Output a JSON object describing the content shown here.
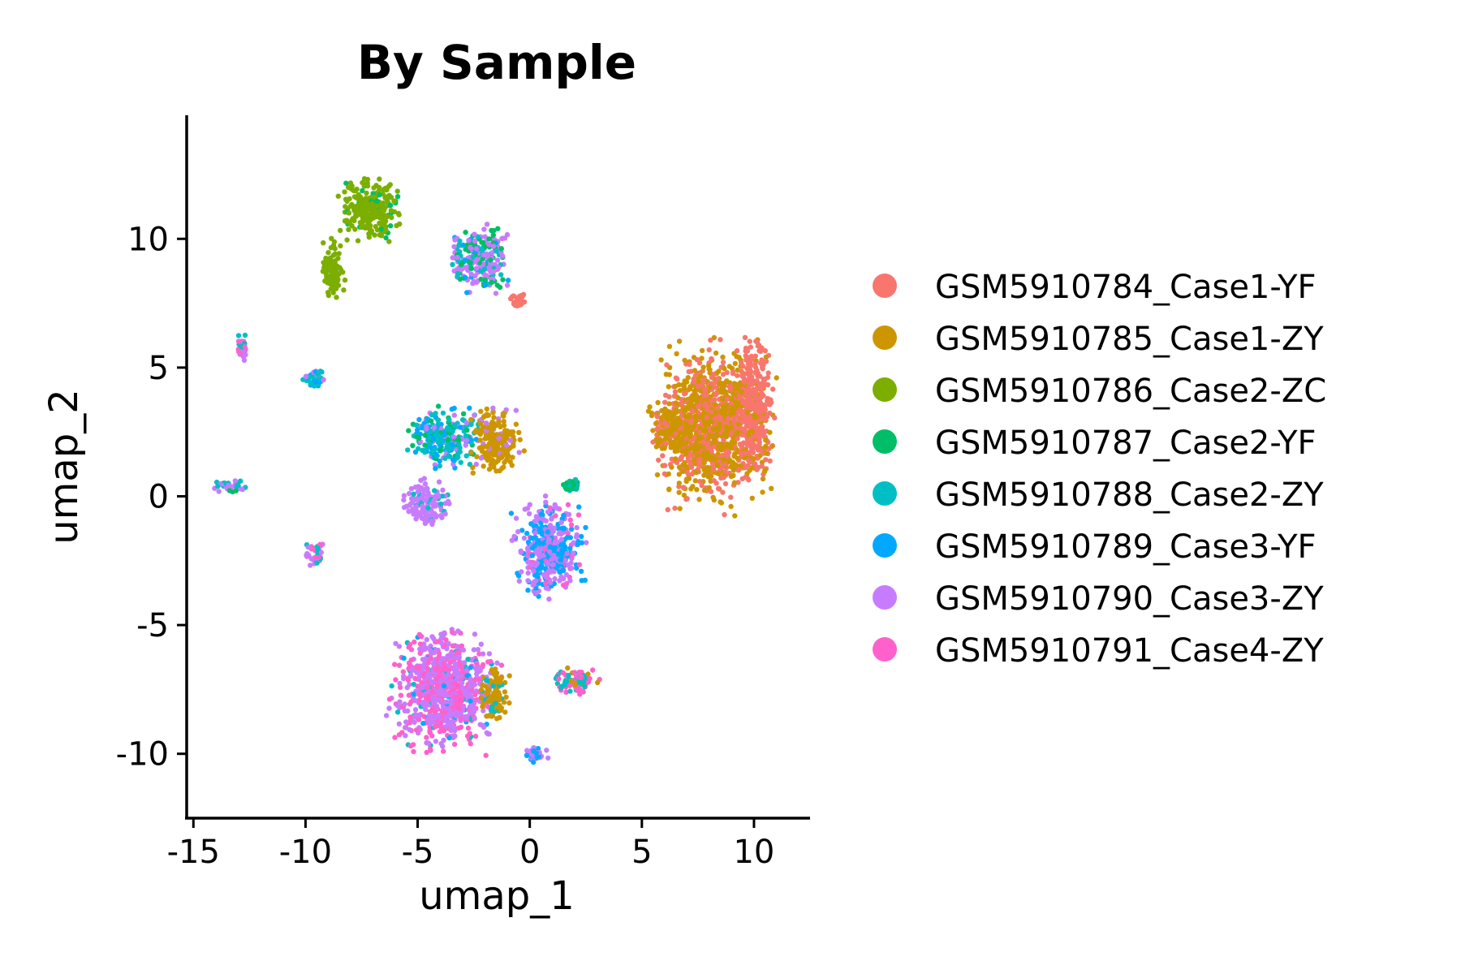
{
  "chart_data": {
    "type": "scatter",
    "title": "By Sample",
    "xlabel": "umap_1",
    "ylabel": "umap_2",
    "xlim": [
      -15.3,
      12.5
    ],
    "ylim": [
      -12.5,
      14.8
    ],
    "xticks": [
      -15,
      -10,
      -5,
      0,
      5,
      10
    ],
    "xtick_labels": [
      "-15",
      "-10",
      "-5",
      "0",
      "5",
      "10"
    ],
    "yticks": [
      -10,
      -5,
      0,
      5,
      10
    ],
    "ytick_labels": [
      "-10",
      "-5",
      "0",
      "5",
      "10"
    ],
    "grid": false,
    "legend_position": "right",
    "series": [
      {
        "name": "GSM5910784_Case1-YF",
        "color": "#F8766D"
      },
      {
        "name": "GSM5910785_Case1-ZY",
        "color": "#CD9600"
      },
      {
        "name": "GSM5910786_Case2-ZC",
        "color": "#7CAE00"
      },
      {
        "name": "GSM5910787_Case2-YF",
        "color": "#00BE67"
      },
      {
        "name": "GSM5910788_Case2-ZY",
        "color": "#00BFC4"
      },
      {
        "name": "GSM5910789_Case3-YF",
        "color": "#00A9FF"
      },
      {
        "name": "GSM5910790_Case3-ZY",
        "color": "#C77CFF"
      },
      {
        "name": "GSM5910791_Case4-ZY",
        "color": "#FF61CC"
      }
    ],
    "clusters": [
      {
        "cx": 8.2,
        "cy": 2.8,
        "rx": 3.2,
        "ry": 4.0,
        "mix": [
          [
            1,
            0.55
          ],
          [
            0,
            0.45
          ]
        ]
      },
      {
        "cx": 10.0,
        "cy": 3.5,
        "rx": 1.0,
        "ry": 3.4,
        "mix": [
          [
            0,
            0.9
          ],
          [
            1,
            0.1
          ]
        ]
      },
      {
        "cx": 6.3,
        "cy": 2.6,
        "rx": 1.2,
        "ry": 1.4,
        "mix": [
          [
            1,
            0.8
          ],
          [
            0,
            0.2
          ]
        ]
      },
      {
        "cx": -3.8,
        "cy": -7.5,
        "rx": 3.0,
        "ry": 3.0,
        "mix": [
          [
            6,
            0.5
          ],
          [
            7,
            0.4
          ],
          [
            5,
            0.05
          ],
          [
            4,
            0.05
          ]
        ]
      },
      {
        "cx": -1.6,
        "cy": -7.8,
        "rx": 0.8,
        "ry": 1.4,
        "mix": [
          [
            1,
            0.85
          ],
          [
            4,
            0.15
          ]
        ]
      },
      {
        "cx": 0.9,
        "cy": -2.0,
        "rx": 2.0,
        "ry": 2.4,
        "mix": [
          [
            6,
            0.55
          ],
          [
            5,
            0.35
          ],
          [
            7,
            0.1
          ]
        ]
      },
      {
        "cx": 1.8,
        "cy": 0.4,
        "rx": 0.5,
        "ry": 0.4,
        "mix": [
          [
            4,
            0.6
          ],
          [
            3,
            0.4
          ]
        ]
      },
      {
        "cx": -3.8,
        "cy": 2.3,
        "rx": 2.0,
        "ry": 1.5,
        "mix": [
          [
            4,
            0.45
          ],
          [
            5,
            0.25
          ],
          [
            3,
            0.15
          ],
          [
            6,
            0.15
          ]
        ]
      },
      {
        "cx": -4.6,
        "cy": -0.3,
        "rx": 1.3,
        "ry": 1.2,
        "mix": [
          [
            6,
            0.8
          ],
          [
            4,
            0.2
          ]
        ]
      },
      {
        "cx": -1.5,
        "cy": 2.2,
        "rx": 1.4,
        "ry": 1.7,
        "mix": [
          [
            1,
            0.9
          ],
          [
            6,
            0.1
          ]
        ]
      },
      {
        "cx": -7.2,
        "cy": 11.2,
        "rx": 1.8,
        "ry": 1.6,
        "mix": [
          [
            2,
            0.9
          ],
          [
            3,
            0.1
          ]
        ]
      },
      {
        "cx": -8.8,
        "cy": 8.8,
        "rx": 0.6,
        "ry": 1.7,
        "mix": [
          [
            2,
            1.0
          ]
        ]
      },
      {
        "cx": -2.2,
        "cy": 9.2,
        "rx": 1.7,
        "ry": 1.6,
        "mix": [
          [
            6,
            0.45
          ],
          [
            3,
            0.3
          ],
          [
            4,
            0.15
          ],
          [
            5,
            0.1
          ]
        ]
      },
      {
        "cx": -0.5,
        "cy": 7.6,
        "rx": 0.5,
        "ry": 0.4,
        "mix": [
          [
            0,
            1.0
          ]
        ]
      },
      {
        "cx": -9.6,
        "cy": 4.6,
        "rx": 0.6,
        "ry": 0.6,
        "mix": [
          [
            4,
            0.4
          ],
          [
            5,
            0.3
          ],
          [
            6,
            0.3
          ]
        ]
      },
      {
        "cx": -12.8,
        "cy": 5.8,
        "rx": 0.3,
        "ry": 0.7,
        "mix": [
          [
            7,
            0.5
          ],
          [
            6,
            0.3
          ],
          [
            4,
            0.2
          ]
        ]
      },
      {
        "cx": -13.3,
        "cy": 0.4,
        "rx": 1.0,
        "ry": 0.3,
        "mix": [
          [
            6,
            0.5
          ],
          [
            4,
            0.3
          ],
          [
            3,
            0.2
          ]
        ]
      },
      {
        "cx": -9.6,
        "cy": -2.2,
        "rx": 0.6,
        "ry": 0.6,
        "mix": [
          [
            6,
            0.5
          ],
          [
            7,
            0.3
          ],
          [
            4,
            0.2
          ]
        ]
      },
      {
        "cx": 2.0,
        "cy": -7.2,
        "rx": 1.3,
        "ry": 0.7,
        "mix": [
          [
            7,
            0.4
          ],
          [
            4,
            0.4
          ],
          [
            1,
            0.2
          ]
        ]
      },
      {
        "cx": 0.2,
        "cy": -10.0,
        "rx": 0.7,
        "ry": 0.4,
        "mix": [
          [
            6,
            0.6
          ],
          [
            5,
            0.4
          ]
        ]
      }
    ]
  }
}
